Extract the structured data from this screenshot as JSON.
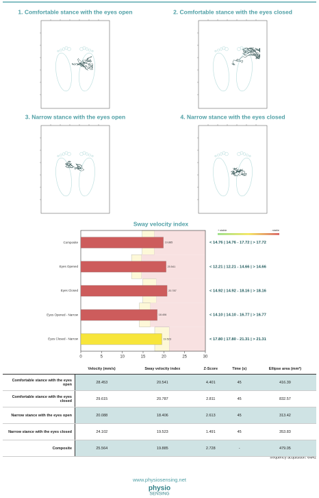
{
  "panels": [
    {
      "title": "1. Comfortable stance with the eyes open"
    },
    {
      "title": "2. Comfortable stance with the eyes closed"
    },
    {
      "title": "3. Narrow stance with the eyes open"
    },
    {
      "title": "4. Narrow stance with the eyes closed"
    }
  ],
  "chart_data": {
    "type": "bar",
    "orientation": "horizontal",
    "title": "Sway velocity index",
    "categories": [
      "Composite",
      "Eyes Opened",
      "Eyes Closed",
      "Eyes Opened - Narrow",
      "Eyes Closed - Narrow"
    ],
    "values": [
      19.885,
      20.541,
      20.787,
      18.406,
      19.523
    ],
    "colors": [
      "#cd5c5c",
      "#cd5c5c",
      "#cd5c5c",
      "#cd5c5c",
      "#f7e53b"
    ],
    "thresholds": [
      [
        14.76,
        17.72
      ],
      [
        12.21,
        14.66
      ],
      [
        14.92,
        18.16
      ],
      [
        14.1,
        16.77
      ],
      [
        17.8,
        21.31
      ]
    ],
    "range_labels": [
      "< 14.76 | 14.76 - 17.72 | > 17.72",
      "< 12.21 | 12.21 - 14.66 | > 14.66",
      "< 14.92 | 14.92 - 18.16 | > 18.16",
      "< 14.10 | 14.10 - 16.77 | > 16.77",
      "< 17.80 | 17.80 - 21.31 | > 21.31"
    ],
    "legend": [
      "+ stable",
      "- stable"
    ],
    "xlim": [
      0,
      30
    ],
    "xticks": [
      0,
      5,
      10,
      15,
      20,
      25,
      30
    ]
  },
  "table": {
    "header": [
      "Velocity (mm/s)",
      "Sway velocity index",
      "Z-Score",
      "Time (s)",
      "Ellipse area (mm²)"
    ],
    "rows": [
      [
        "Comfortable stance with the eyes open",
        "28.453",
        "20.541",
        "4.401",
        "45",
        "416.39"
      ],
      [
        "Comfortable stance with the eyes closed",
        "29.615",
        "20.787",
        "2.811",
        "45",
        "832.57"
      ],
      [
        "Narrow stance with the eyes open",
        "20.088",
        "18.406",
        "2.613",
        "45",
        "313.42"
      ],
      [
        "Narrow stance with the eyes closed",
        "24.102",
        "19.523",
        "1.491",
        "45",
        "353.83"
      ],
      [
        "Composite",
        "25.564",
        "19.885",
        "2.728",
        "-",
        "479.05"
      ]
    ]
  },
  "note": "frequency acquisition: 64Hz",
  "footer": {
    "url": "www.physiosensing.net",
    "logo_top": "physio",
    "logo_bottom": "SENSING"
  }
}
